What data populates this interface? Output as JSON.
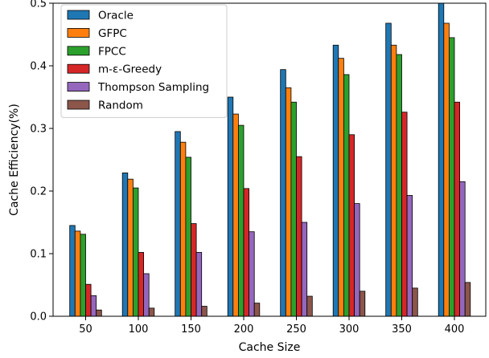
{
  "chart_data": {
    "type": "bar",
    "xlabel": "Cache Size",
    "ylabel": "Cache Efficiency(%)",
    "categories": [
      "50",
      "100",
      "150",
      "200",
      "250",
      "300",
      "350",
      "400"
    ],
    "ylim": [
      0,
      0.5
    ],
    "yticks": [
      "0.0",
      "0.1",
      "0.2",
      "0.3",
      "0.4",
      "0.5"
    ],
    "grid": false,
    "legend_position": "top-left",
    "series": [
      {
        "name": "Oracle",
        "color": "#1f77b4",
        "values": [
          0.145,
          0.229,
          0.295,
          0.35,
          0.394,
          0.433,
          0.468,
          0.5
        ]
      },
      {
        "name": "GFPC",
        "color": "#ff7f0e",
        "values": [
          0.136,
          0.219,
          0.278,
          0.323,
          0.365,
          0.412,
          0.433,
          0.468
        ]
      },
      {
        "name": "FPCC",
        "color": "#2ca02c",
        "values": [
          0.131,
          0.205,
          0.254,
          0.305,
          0.342,
          0.386,
          0.418,
          0.445
        ]
      },
      {
        "name": "m-ε-Greedy",
        "color": "#d62728",
        "values": [
          0.051,
          0.102,
          0.148,
          0.204,
          0.255,
          0.29,
          0.326,
          0.342
        ]
      },
      {
        "name": "Thompson Sampling",
        "color": "#9467bd",
        "values": [
          0.033,
          0.068,
          0.102,
          0.135,
          0.15,
          0.18,
          0.193,
          0.215
        ]
      },
      {
        "name": "Random",
        "color": "#8c564b",
        "values": [
          0.01,
          0.013,
          0.016,
          0.021,
          0.032,
          0.04,
          0.045,
          0.054
        ]
      }
    ]
  }
}
